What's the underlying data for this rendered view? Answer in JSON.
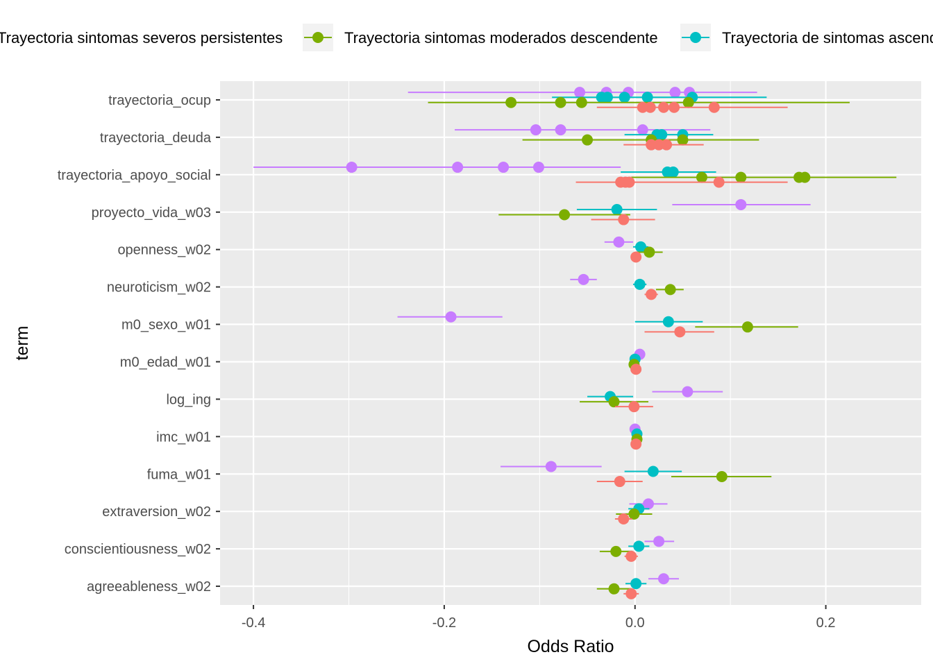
{
  "chart_data": {
    "type": "scatter",
    "xlabel": "Odds Ratio",
    "ylabel": "term",
    "xlim": [
      -0.435,
      0.3
    ],
    "x_ticks": [
      -0.4,
      -0.2,
      0.0,
      0.2
    ],
    "x_tick_labels": [
      "-0.4",
      "-0.2",
      "0.0",
      "0.2"
    ],
    "grid": true,
    "legend_position": "top",
    "terms": [
      "trayectoria_ocup",
      "trayectoria_deuda",
      "trayectoria_apoyo_social",
      "proyecto_vida_w03",
      "openness_w02",
      "neuroticism_w02",
      "m0_sexo_w01",
      "m0_edad_w01",
      "log_ing",
      "imc_w01",
      "fuma_w01",
      "extraversion_w02",
      "conscientiousness_w02",
      "agreeableness_w02"
    ],
    "series": [
      {
        "name": "Trayectoria sintomas severos persistentes",
        "color": "#F8766D",
        "points": [
          {
            "term": "trayectoria_ocup",
            "x": 0.008,
            "lo": -0.04,
            "hi": 0.16
          },
          {
            "term": "trayectoria_ocup",
            "x": 0.016,
            "lo": null,
            "hi": null
          },
          {
            "term": "trayectoria_ocup",
            "x": 0.03,
            "lo": null,
            "hi": null
          },
          {
            "term": "trayectoria_ocup",
            "x": 0.041,
            "lo": null,
            "hi": null
          },
          {
            "term": "trayectoria_ocup",
            "x": 0.083,
            "lo": null,
            "hi": null
          },
          {
            "term": "trayectoria_deuda",
            "x": 0.017,
            "lo": -0.012,
            "hi": 0.072
          },
          {
            "term": "trayectoria_deuda",
            "x": 0.025,
            "lo": null,
            "hi": null
          },
          {
            "term": "trayectoria_deuda",
            "x": 0.033,
            "lo": null,
            "hi": null
          },
          {
            "term": "trayectoria_apoyo_social",
            "x": -0.015,
            "lo": -0.062,
            "hi": 0.16
          },
          {
            "term": "trayectoria_apoyo_social",
            "x": -0.01,
            "lo": null,
            "hi": null
          },
          {
            "term": "trayectoria_apoyo_social",
            "x": -0.006,
            "lo": null,
            "hi": null
          },
          {
            "term": "trayectoria_apoyo_social",
            "x": 0.088,
            "lo": null,
            "hi": null
          },
          {
            "term": "proyecto_vida_w03",
            "x": -0.012,
            "lo": -0.046,
            "hi": 0.021
          },
          {
            "term": "openness_w02",
            "x": 0.001,
            "lo": -0.004,
            "hi": 0.006
          },
          {
            "term": "neuroticism_w02",
            "x": 0.017,
            "lo": 0.01,
            "hi": 0.024
          },
          {
            "term": "m0_sexo_w01",
            "x": 0.047,
            "lo": 0.01,
            "hi": 0.083
          },
          {
            "term": "m0_edad_w01",
            "x": 0.001,
            "lo": -0.001,
            "hi": 0.003
          },
          {
            "term": "log_ing",
            "x": -0.001,
            "lo": -0.021,
            "hi": 0.019
          },
          {
            "term": "imc_w01",
            "x": 0.001,
            "lo": -0.001,
            "hi": 0.003
          },
          {
            "term": "fuma_w01",
            "x": -0.016,
            "lo": -0.04,
            "hi": 0.008
          },
          {
            "term": "extraversion_w02",
            "x": -0.012,
            "lo": -0.021,
            "hi": -0.003
          },
          {
            "term": "conscientiousness_w02",
            "x": -0.004,
            "lo": -0.011,
            "hi": 0.003
          },
          {
            "term": "agreeableness_w02",
            "x": -0.004,
            "lo": -0.012,
            "hi": 0.004
          }
        ]
      },
      {
        "name": "Trayectoria sintomas moderados descendente",
        "color": "#7CAE00",
        "points": [
          {
            "term": "trayectoria_ocup",
            "x": -0.13,
            "lo": -0.217,
            "hi": 0.225
          },
          {
            "term": "trayectoria_ocup",
            "x": -0.078,
            "lo": null,
            "hi": null
          },
          {
            "term": "trayectoria_ocup",
            "x": -0.056,
            "lo": null,
            "hi": null
          },
          {
            "term": "trayectoria_ocup",
            "x": 0.056,
            "lo": null,
            "hi": null
          },
          {
            "term": "trayectoria_deuda",
            "x": -0.05,
            "lo": -0.118,
            "hi": 0.13
          },
          {
            "term": "trayectoria_deuda",
            "x": 0.017,
            "lo": null,
            "hi": null
          },
          {
            "term": "trayectoria_deuda",
            "x": 0.05,
            "lo": null,
            "hi": null
          },
          {
            "term": "trayectoria_apoyo_social",
            "x": 0.07,
            "lo": -0.004,
            "hi": 0.274
          },
          {
            "term": "trayectoria_apoyo_social",
            "x": 0.111,
            "lo": null,
            "hi": null
          },
          {
            "term": "trayectoria_apoyo_social",
            "x": 0.172,
            "lo": null,
            "hi": null
          },
          {
            "term": "trayectoria_apoyo_social",
            "x": 0.178,
            "lo": null,
            "hi": null
          },
          {
            "term": "proyecto_vida_w03",
            "x": -0.074,
            "lo": -0.143,
            "hi": -0.005
          },
          {
            "term": "openness_w02",
            "x": 0.015,
            "lo": 0.001,
            "hi": 0.029
          },
          {
            "term": "neuroticism_w02",
            "x": 0.037,
            "lo": 0.022,
            "hi": 0.051
          },
          {
            "term": "m0_sexo_w01",
            "x": 0.118,
            "lo": 0.063,
            "hi": 0.171
          },
          {
            "term": "m0_edad_w01",
            "x": -0.001,
            "lo": -0.004,
            "hi": 0.002
          },
          {
            "term": "log_ing",
            "x": -0.022,
            "lo": -0.058,
            "hi": 0.014
          },
          {
            "term": "imc_w01",
            "x": 0.002,
            "lo": -0.001,
            "hi": 0.005
          },
          {
            "term": "fuma_w01",
            "x": 0.091,
            "lo": 0.038,
            "hi": 0.143
          },
          {
            "term": "extraversion_w02",
            "x": -0.001,
            "lo": -0.02,
            "hi": 0.018
          },
          {
            "term": "conscientiousness_w02",
            "x": -0.02,
            "lo": -0.037,
            "hi": -0.003
          },
          {
            "term": "agreeableness_w02",
            "x": -0.022,
            "lo": -0.04,
            "hi": -0.004
          }
        ]
      },
      {
        "name": "Trayectoria de sintomas ascendentes",
        "color": "#00BFC4",
        "points": [
          {
            "term": "trayectoria_ocup",
            "x": -0.035,
            "lo": -0.087,
            "hi": 0.138
          },
          {
            "term": "trayectoria_ocup",
            "x": -0.029,
            "lo": null,
            "hi": null
          },
          {
            "term": "trayectoria_ocup",
            "x": -0.011,
            "lo": null,
            "hi": null
          },
          {
            "term": "trayectoria_ocup",
            "x": 0.013,
            "lo": null,
            "hi": null
          },
          {
            "term": "trayectoria_ocup",
            "x": 0.06,
            "lo": null,
            "hi": null
          },
          {
            "term": "trayectoria_deuda",
            "x": 0.023,
            "lo": -0.011,
            "hi": 0.082
          },
          {
            "term": "trayectoria_deuda",
            "x": 0.028,
            "lo": null,
            "hi": null
          },
          {
            "term": "trayectoria_deuda",
            "x": 0.05,
            "lo": null,
            "hi": null
          },
          {
            "term": "trayectoria_apoyo_social",
            "x": 0.034,
            "lo": -0.015,
            "hi": 0.085
          },
          {
            "term": "trayectoria_apoyo_social",
            "x": 0.04,
            "lo": null,
            "hi": null
          },
          {
            "term": "proyecto_vida_w03",
            "x": -0.019,
            "lo": -0.061,
            "hi": 0.023
          },
          {
            "term": "openness_w02",
            "x": 0.006,
            "lo": -0.002,
            "hi": 0.014
          },
          {
            "term": "neuroticism_w02",
            "x": 0.005,
            "lo": -0.002,
            "hi": 0.012
          },
          {
            "term": "m0_sexo_w01",
            "x": 0.035,
            "lo": 0.0,
            "hi": 0.071
          },
          {
            "term": "m0_edad_w01",
            "x": 0.0,
            "lo": -0.002,
            "hi": 0.002
          },
          {
            "term": "log_ing",
            "x": -0.026,
            "lo": -0.05,
            "hi": -0.002
          },
          {
            "term": "imc_w01",
            "x": 0.002,
            "lo": -0.001,
            "hi": 0.005
          },
          {
            "term": "fuma_w01",
            "x": 0.019,
            "lo": -0.011,
            "hi": 0.049
          },
          {
            "term": "extraversion_w02",
            "x": 0.004,
            "lo": -0.007,
            "hi": 0.015
          },
          {
            "term": "conscientiousness_w02",
            "x": 0.004,
            "lo": -0.007,
            "hi": 0.015
          },
          {
            "term": "agreeableness_w02",
            "x": 0.001,
            "lo": -0.01,
            "hi": 0.012
          }
        ]
      },
      {
        "name": "",
        "color": "#C77CFF",
        "points": [
          {
            "term": "trayectoria_ocup",
            "x": -0.058,
            "lo": -0.238,
            "hi": 0.128
          },
          {
            "term": "trayectoria_ocup",
            "x": -0.03,
            "lo": null,
            "hi": null
          },
          {
            "term": "trayectoria_ocup",
            "x": -0.007,
            "lo": null,
            "hi": null
          },
          {
            "term": "trayectoria_ocup",
            "x": 0.042,
            "lo": null,
            "hi": null
          },
          {
            "term": "trayectoria_ocup",
            "x": 0.057,
            "lo": null,
            "hi": null
          },
          {
            "term": "trayectoria_deuda",
            "x": -0.104,
            "lo": -0.189,
            "hi": 0.079
          },
          {
            "term": "trayectoria_deuda",
            "x": -0.078,
            "lo": null,
            "hi": null
          },
          {
            "term": "trayectoria_deuda",
            "x": 0.008,
            "lo": null,
            "hi": null
          },
          {
            "term": "trayectoria_apoyo_social",
            "x": -0.297,
            "lo": -0.4,
            "hi": -0.015
          },
          {
            "term": "trayectoria_apoyo_social",
            "x": -0.186,
            "lo": null,
            "hi": null
          },
          {
            "term": "trayectoria_apoyo_social",
            "x": -0.138,
            "lo": null,
            "hi": null
          },
          {
            "term": "trayectoria_apoyo_social",
            "x": -0.101,
            "lo": null,
            "hi": null
          },
          {
            "term": "proyecto_vida_w03",
            "x": 0.111,
            "lo": 0.039,
            "hi": 0.184
          },
          {
            "term": "openness_w02",
            "x": -0.017,
            "lo": -0.032,
            "hi": -0.002
          },
          {
            "term": "neuroticism_w02",
            "x": -0.054,
            "lo": -0.068,
            "hi": -0.04
          },
          {
            "term": "m0_sexo_w01",
            "x": -0.193,
            "lo": -0.249,
            "hi": -0.139
          },
          {
            "term": "m0_edad_w01",
            "x": 0.005,
            "lo": 0.003,
            "hi": 0.007
          },
          {
            "term": "log_ing",
            "x": 0.055,
            "lo": 0.018,
            "hi": 0.092
          },
          {
            "term": "imc_w01",
            "x": 0.0,
            "lo": -0.002,
            "hi": 0.002
          },
          {
            "term": "fuma_w01",
            "x": -0.088,
            "lo": -0.141,
            "hi": -0.035
          },
          {
            "term": "extraversion_w02",
            "x": 0.014,
            "lo": -0.006,
            "hi": 0.034
          },
          {
            "term": "conscientiousness_w02",
            "x": 0.025,
            "lo": 0.01,
            "hi": 0.041
          },
          {
            "term": "agreeableness_w02",
            "x": 0.03,
            "lo": 0.014,
            "hi": 0.046
          }
        ]
      }
    ]
  }
}
